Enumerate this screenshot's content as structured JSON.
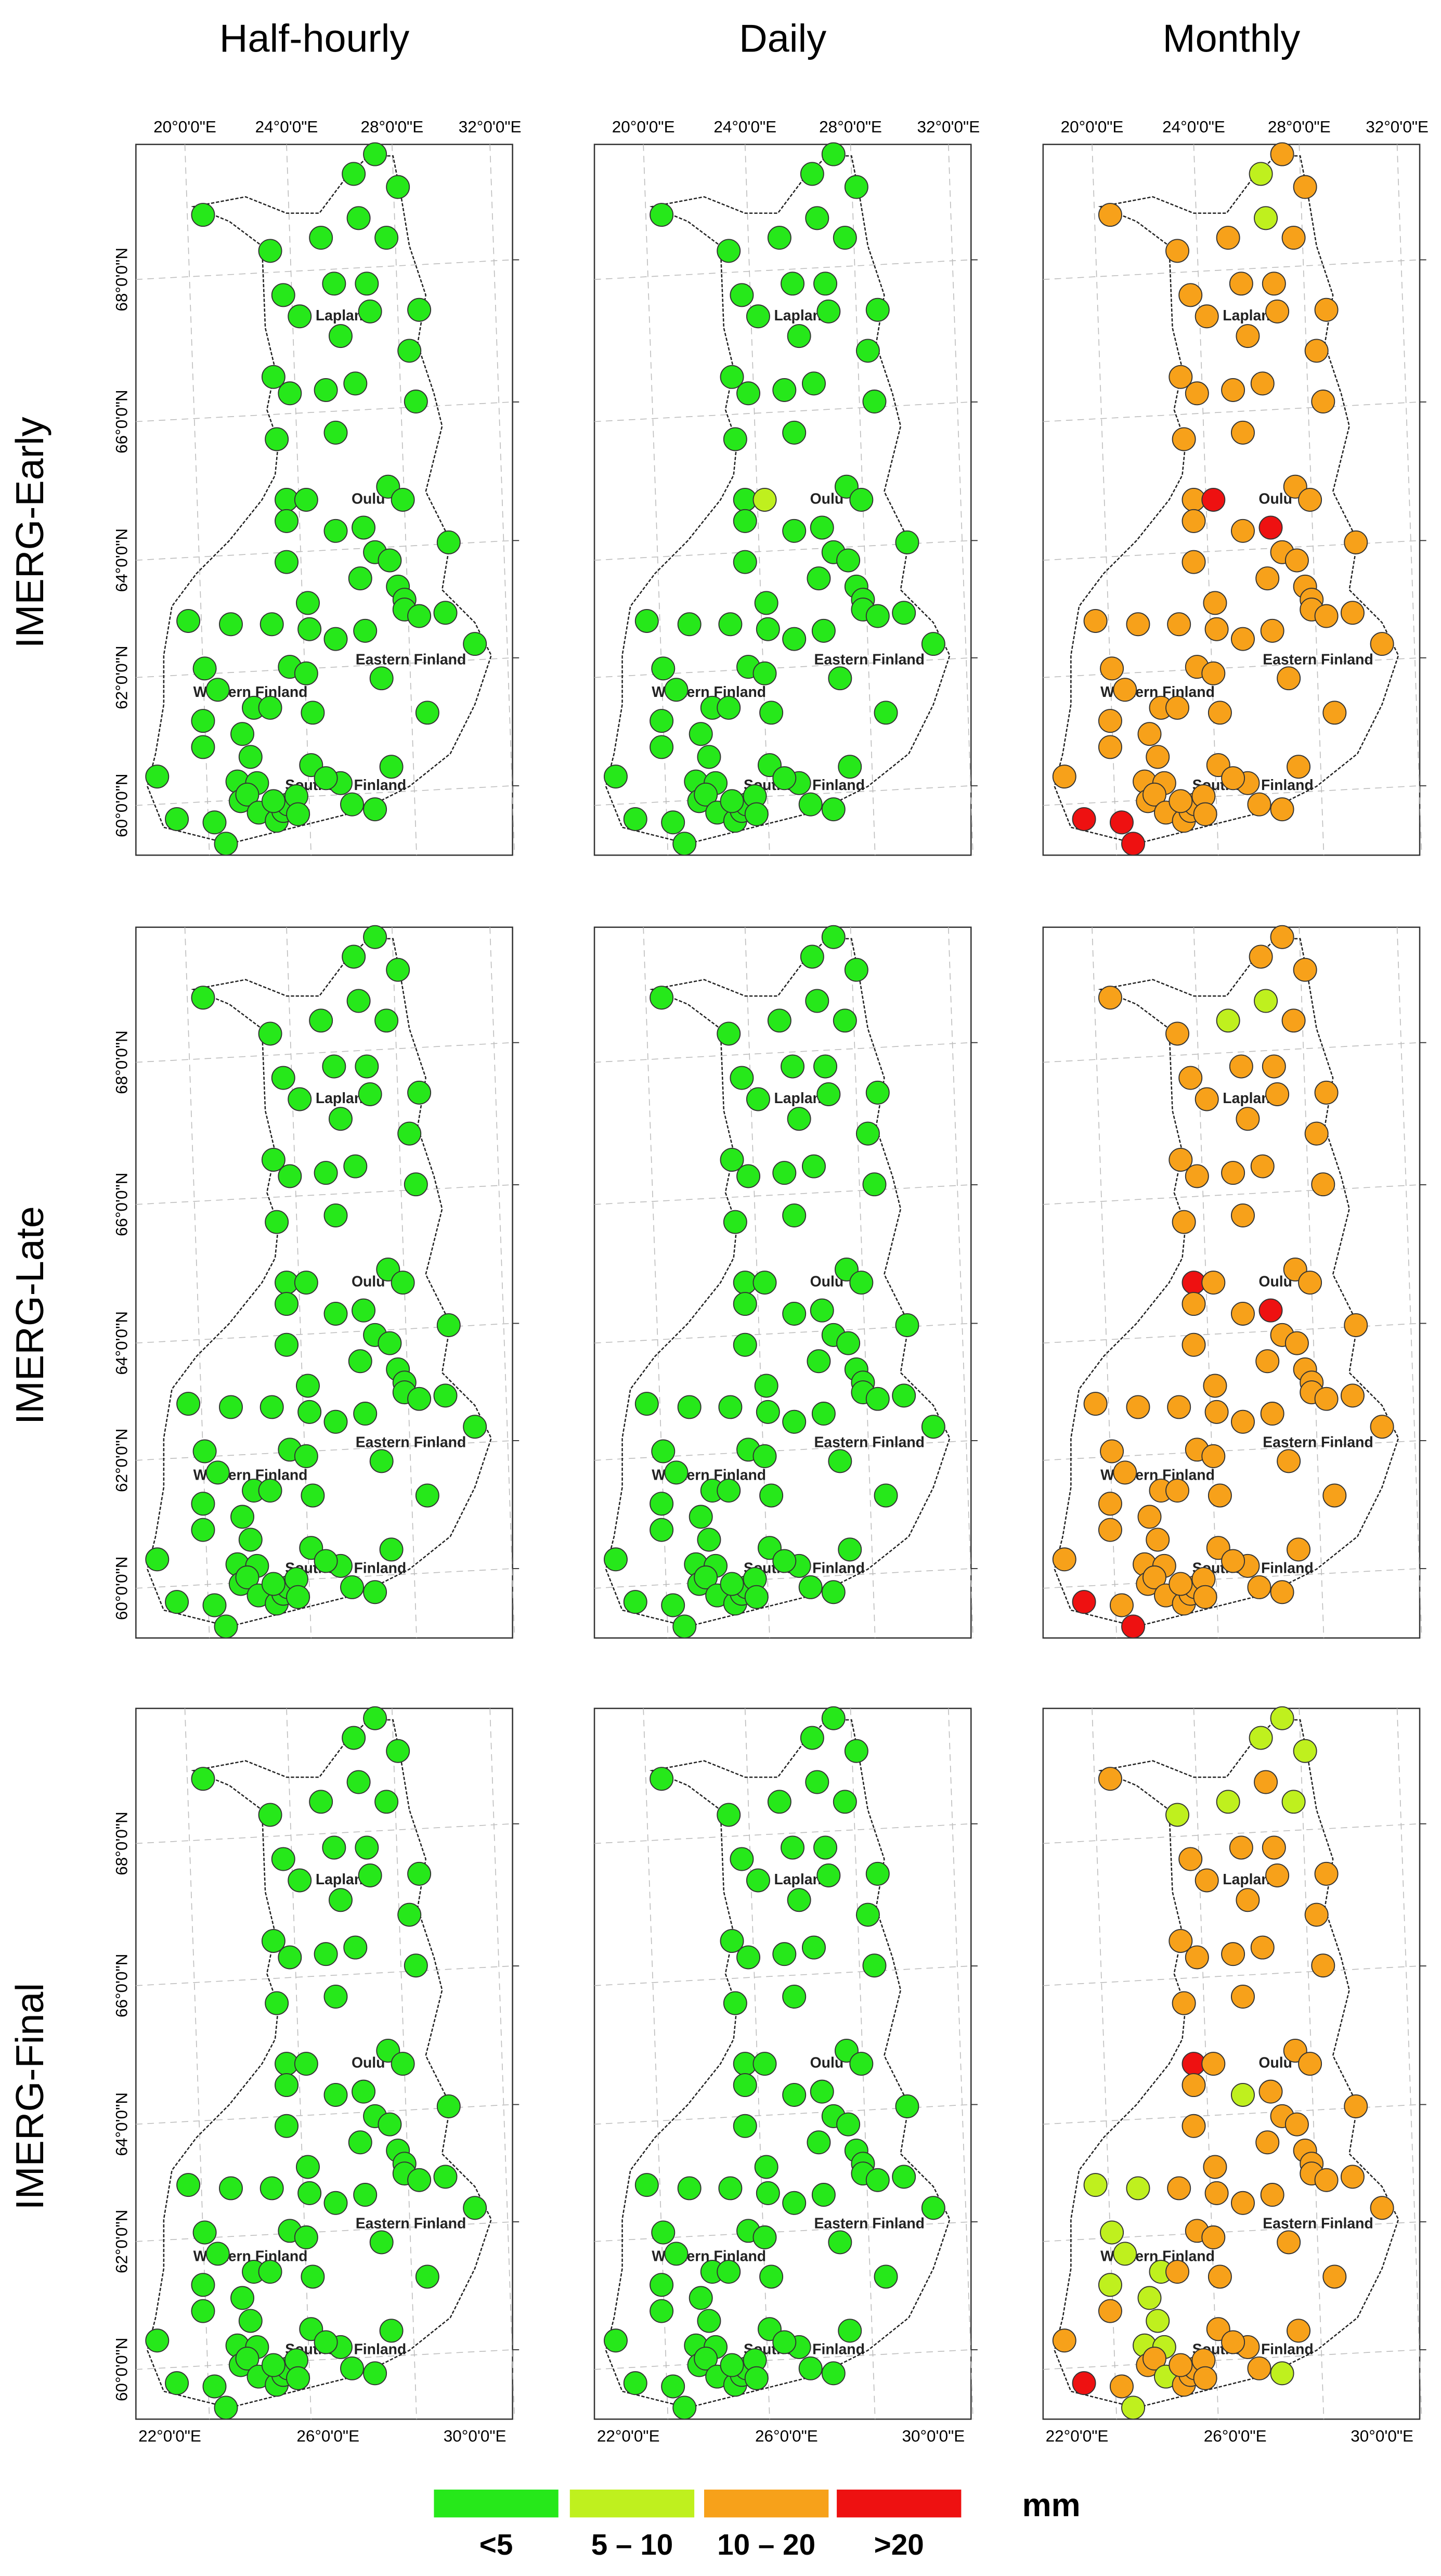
{
  "column_titles": [
    "Half-hourly",
    "Daily",
    "Monthly"
  ],
  "row_titles": [
    "IMERG-Early",
    "IMERG-Late",
    "IMERG-Final"
  ],
  "ticks": {
    "top": [
      "20°0'0\"E",
      "24°0'0\"E",
      "28°0'0\"E",
      "32°0'0\"E"
    ],
    "bottom": [
      "22°0'0\"E",
      "26°0'0\"E",
      "30°0'0\"E"
    ],
    "left": [
      "68°0'0\"N",
      "66°0'0\"N",
      "64°0'0\"N",
      "62°0'0\"N",
      "60°0'0\"N"
    ]
  },
  "regions": [
    "Lapland",
    "Oulu",
    "Eastern Finland",
    "Western Finland",
    "Southern Finland"
  ],
  "legend": {
    "unit": "mm",
    "items": [
      {
        "label": "<5",
        "color": "#26e81a"
      },
      {
        "label": "5 – 10",
        "color": "#bff01e"
      },
      {
        "label": "10 – 20",
        "color": "#f7a11a"
      },
      {
        "label": ">20",
        "color": "#ee1111"
      }
    ]
  },
  "panels": [
    [
      [
        0,
        0,
        0,
        0,
        0,
        0,
        0,
        0,
        0,
        0,
        0,
        0,
        0,
        0,
        0,
        0,
        0,
        0,
        0,
        0,
        0,
        0,
        0,
        0,
        0,
        0,
        0,
        0,
        0,
        0,
        0,
        0,
        0,
        0,
        0,
        0,
        0,
        0,
        0,
        0,
        0,
        0,
        0,
        0,
        0,
        0,
        0,
        0,
        0,
        0,
        0,
        0,
        0,
        0,
        0,
        0,
        0,
        0,
        0,
        0,
        0,
        0,
        0,
        0,
        0,
        0,
        0,
        0,
        0,
        0,
        0,
        0,
        0,
        0,
        0,
        0,
        0,
        0,
        0,
        0,
        0,
        0
      ],
      [
        0,
        0,
        0,
        0,
        0,
        0,
        0,
        0,
        0,
        0,
        0,
        0,
        0,
        0,
        0,
        0,
        0,
        0,
        0,
        0,
        0,
        0,
        0,
        0,
        1,
        0,
        0,
        0,
        0,
        0,
        0,
        0,
        0,
        0,
        0,
        0,
        0,
        0,
        0,
        0,
        0,
        0,
        0,
        0,
        0,
        0,
        0,
        0,
        0,
        0,
        0,
        0,
        0,
        0,
        0,
        0,
        0,
        0,
        0,
        0,
        0,
        0,
        0,
        0,
        0,
        0,
        0,
        0,
        0,
        0,
        0,
        0,
        0,
        0,
        0,
        0,
        0,
        0,
        0,
        0,
        0,
        0
      ],
      [
        2,
        2,
        1,
        2,
        2,
        1,
        2,
        2,
        2,
        2,
        2,
        2,
        2,
        2,
        2,
        2,
        2,
        2,
        2,
        2,
        2,
        2,
        2,
        2,
        3,
        2,
        2,
        2,
        2,
        3,
        2,
        2,
        2,
        2,
        2,
        2,
        2,
        2,
        2,
        2,
        2,
        2,
        2,
        2,
        2,
        2,
        2,
        2,
        2,
        2,
        2,
        2,
        2,
        2,
        2,
        2,
        2,
        2,
        2,
        2,
        2,
        2,
        2,
        2,
        2,
        2,
        2,
        3,
        3,
        2,
        2,
        2,
        2,
        2,
        2,
        2,
        2,
        2,
        3,
        2,
        2,
        2
      ]
    ],
    [
      [
        0,
        0,
        0,
        0,
        0,
        0,
        0,
        0,
        0,
        0,
        0,
        0,
        0,
        0,
        0,
        0,
        0,
        0,
        0,
        0,
        0,
        0,
        0,
        0,
        0,
        0,
        0,
        0,
        0,
        0,
        0,
        0,
        0,
        0,
        0,
        0,
        0,
        0,
        0,
        0,
        0,
        0,
        0,
        0,
        0,
        0,
        0,
        0,
        0,
        0,
        0,
        0,
        0,
        0,
        0,
        0,
        0,
        0,
        0,
        0,
        0,
        0,
        0,
        0,
        0,
        0,
        0,
        0,
        0,
        0,
        0,
        0,
        0,
        0,
        0,
        0,
        0,
        0,
        0,
        0,
        0,
        0
      ],
      [
        0,
        0,
        0,
        0,
        0,
        0,
        0,
        0,
        0,
        0,
        0,
        0,
        0,
        0,
        0,
        0,
        0,
        0,
        0,
        0,
        0,
        0,
        0,
        0,
        0,
        0,
        0,
        0,
        0,
        0,
        0,
        0,
        0,
        0,
        0,
        0,
        0,
        0,
        0,
        0,
        0,
        0,
        0,
        0,
        0,
        0,
        0,
        0,
        0,
        0,
        0,
        0,
        0,
        0,
        0,
        0,
        0,
        0,
        0,
        0,
        0,
        0,
        0,
        0,
        0,
        0,
        0,
        0,
        0,
        0,
        0,
        0,
        0,
        0,
        0,
        0,
        0,
        0,
        0,
        0,
        0,
        0
      ],
      [
        2,
        2,
        2,
        2,
        2,
        1,
        1,
        2,
        2,
        2,
        2,
        2,
        2,
        2,
        2,
        2,
        2,
        2,
        2,
        2,
        2,
        2,
        2,
        3,
        2,
        2,
        2,
        2,
        2,
        3,
        2,
        2,
        2,
        2,
        2,
        2,
        2,
        2,
        2,
        2,
        2,
        2,
        2,
        2,
        2,
        2,
        2,
        2,
        2,
        2,
        2,
        2,
        2,
        2,
        2,
        2,
        2,
        2,
        2,
        2,
        2,
        2,
        2,
        2,
        2,
        2,
        2,
        3,
        2,
        2,
        2,
        2,
        2,
        2,
        2,
        2,
        2,
        2,
        3,
        2,
        2,
        2
      ]
    ],
    [
      [
        0,
        0,
        0,
        0,
        0,
        0,
        0,
        0,
        0,
        0,
        0,
        0,
        0,
        0,
        0,
        0,
        0,
        0,
        0,
        0,
        0,
        0,
        0,
        0,
        0,
        0,
        0,
        0,
        0,
        0,
        0,
        0,
        0,
        0,
        0,
        0,
        0,
        0,
        0,
        0,
        0,
        0,
        0,
        0,
        0,
        0,
        0,
        0,
        0,
        0,
        0,
        0,
        0,
        0,
        0,
        0,
        0,
        0,
        0,
        0,
        0,
        0,
        0,
        0,
        0,
        0,
        0,
        0,
        0,
        0,
        0,
        0,
        0,
        0,
        0,
        0,
        0,
        0,
        0,
        0,
        0,
        0
      ],
      [
        0,
        0,
        0,
        0,
        0,
        0,
        0,
        0,
        0,
        0,
        0,
        0,
        0,
        0,
        0,
        0,
        0,
        0,
        0,
        0,
        0,
        0,
        0,
        0,
        0,
        0,
        0,
        0,
        0,
        0,
        0,
        0,
        0,
        0,
        0,
        0,
        0,
        0,
        0,
        0,
        0,
        0,
        0,
        0,
        0,
        0,
        0,
        0,
        0,
        0,
        0,
        0,
        0,
        0,
        0,
        0,
        0,
        0,
        0,
        0,
        0,
        0,
        0,
        0,
        0,
        0,
        0,
        0,
        0,
        0,
        0,
        0,
        0,
        0,
        0,
        0,
        0,
        0,
        0,
        0,
        0,
        0
      ],
      [
        2,
        1,
        1,
        1,
        1,
        2,
        1,
        1,
        2,
        2,
        2,
        2,
        2,
        2,
        2,
        2,
        2,
        2,
        2,
        2,
        2,
        2,
        2,
        3,
        2,
        2,
        2,
        1,
        2,
        2,
        2,
        2,
        2,
        2,
        2,
        2,
        2,
        2,
        1,
        1,
        2,
        2,
        2,
        2,
        2,
        2,
        2,
        2,
        1,
        1,
        2,
        2,
        2,
        1,
        2,
        1,
        2,
        2,
        1,
        2,
        1,
        1,
        1,
        2,
        2,
        2,
        2,
        3,
        2,
        2,
        2,
        1,
        2,
        2,
        2,
        2,
        2,
        1,
        1,
        2,
        2,
        2
      ]
    ]
  ]
}
